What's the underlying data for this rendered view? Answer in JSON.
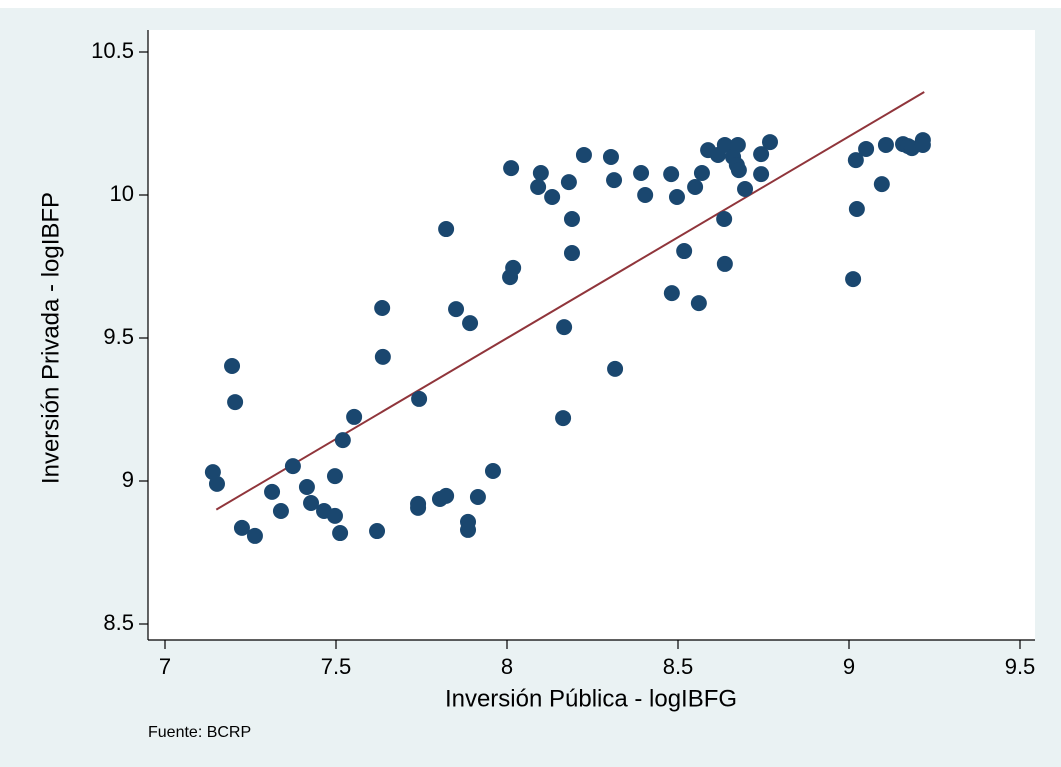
{
  "chart_data": {
    "type": "scatter",
    "x_label": "Inversión Pública - logIBFG",
    "y_label": "Inversión Privada - logIBFP",
    "source": "Fuente: BCRP",
    "xlim": [
      7,
      9.5
    ],
    "ylim": [
      8.5,
      10.5
    ],
    "xticks": [
      7,
      7.5,
      8,
      8.5,
      9,
      9.5
    ],
    "yticks": [
      8.5,
      9,
      9.5,
      10,
      10.5
    ],
    "grid": false,
    "color": "#1a476f",
    "x": [
      7.14,
      7.152,
      7.196,
      7.205,
      7.225,
      7.263,
      7.313,
      7.339,
      7.374,
      7.415,
      7.427,
      7.465,
      7.497,
      7.497,
      7.512,
      7.52,
      7.553,
      7.635,
      7.637,
      7.62,
      7.74,
      7.74,
      7.743,
      7.804,
      7.822,
      7.822,
      7.851,
      7.886,
      7.886,
      7.892,
      7.915,
      7.959,
      8.009,
      8.018,
      8.012,
      8.091,
      8.099,
      8.132,
      8.164,
      8.167,
      8.181,
      8.19,
      8.19,
      8.225,
      8.304,
      8.313,
      8.316,
      8.392,
      8.404,
      8.48,
      8.482,
      8.497,
      8.518,
      8.55,
      8.561,
      8.57,
      8.588,
      8.617,
      8.637,
      8.635,
      8.637,
      8.661,
      8.675,
      8.672,
      8.678,
      8.696,
      8.743,
      8.743,
      8.769,
      9.012,
      9.02,
      9.023,
      9.05,
      9.096,
      9.108,
      9.158,
      9.173,
      9.184,
      9.216,
      9.216
    ],
    "values": [
      9.031,
      8.99,
      9.402,
      9.276,
      8.836,
      8.808,
      8.962,
      8.895,
      9.052,
      8.979,
      8.923,
      8.895,
      8.878,
      9.017,
      8.818,
      9.143,
      9.224,
      9.605,
      9.434,
      8.825,
      8.92,
      8.906,
      9.287,
      8.937,
      8.948,
      9.881,
      9.601,
      8.857,
      8.829,
      9.552,
      8.944,
      9.035,
      9.713,
      9.745,
      10.094,
      10.028,
      10.077,
      9.993,
      9.22,
      9.538,
      10.045,
      9.916,
      9.797,
      10.14,
      10.133,
      10.052,
      9.392,
      10.077,
      10.0,
      10.073,
      9.657,
      9.993,
      9.804,
      10.028,
      9.622,
      10.077,
      10.157,
      10.14,
      10.175,
      9.916,
      9.759,
      10.133,
      10.175,
      10.105,
      10.087,
      10.021,
      10.143,
      10.073,
      10.185,
      9.706,
      10.122,
      9.951,
      10.161,
      10.038,
      10.175,
      10.178,
      10.171,
      10.164,
      10.192,
      10.175
    ],
    "fit": {
      "x": [
        7.15,
        9.22
      ],
      "values": [
        8.9,
        10.36
      ],
      "color": "#90353b"
    }
  }
}
